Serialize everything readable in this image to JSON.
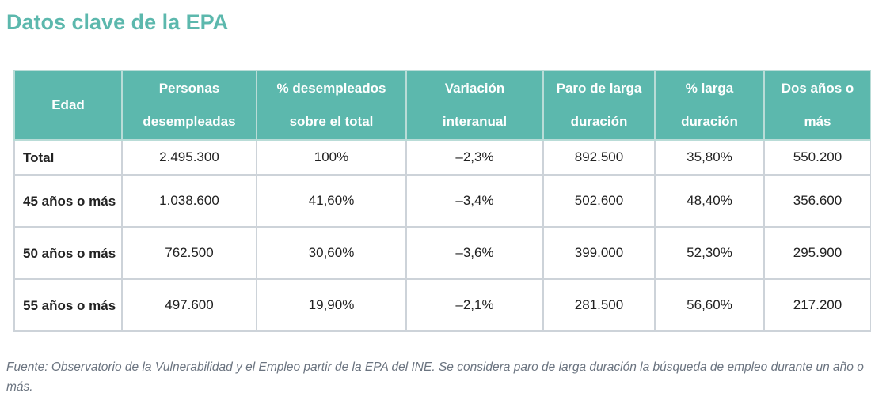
{
  "title": "Datos clave de la EPA",
  "table": {
    "headers": [
      "Edad",
      "Personas desempleadas",
      "% desempleados sobre el total",
      "Variación interanual",
      "Paro de larga duración",
      "% larga duración",
      "Dos años o más"
    ],
    "rows": [
      [
        "Total",
        "2.495.300",
        "100%",
        "–2,3%",
        "892.500",
        "35,80%",
        "550.200"
      ],
      [
        "45 años o más",
        "1.038.600",
        "41,60%",
        "–3,4%",
        "502.600",
        "48,40%",
        "356.600"
      ],
      [
        "50 años o más",
        "762.500",
        "30,60%",
        "–3,6%",
        "399.000",
        "52,30%",
        "295.900"
      ],
      [
        "55 años o más",
        "497.600",
        "19,90%",
        "–2,1%",
        "281.500",
        "56,60%",
        "217.200"
      ]
    ]
  },
  "source": "Fuente: Observatorio de la Vulnerabilidad y el Empleo partir de la EPA del INE. Se considera paro de larga duración la búsqueda de empleo durante un año o más.",
  "colors": {
    "accent": "#5cb8ad",
    "border": "#cdd3d9",
    "source_text": "#6b7480"
  }
}
